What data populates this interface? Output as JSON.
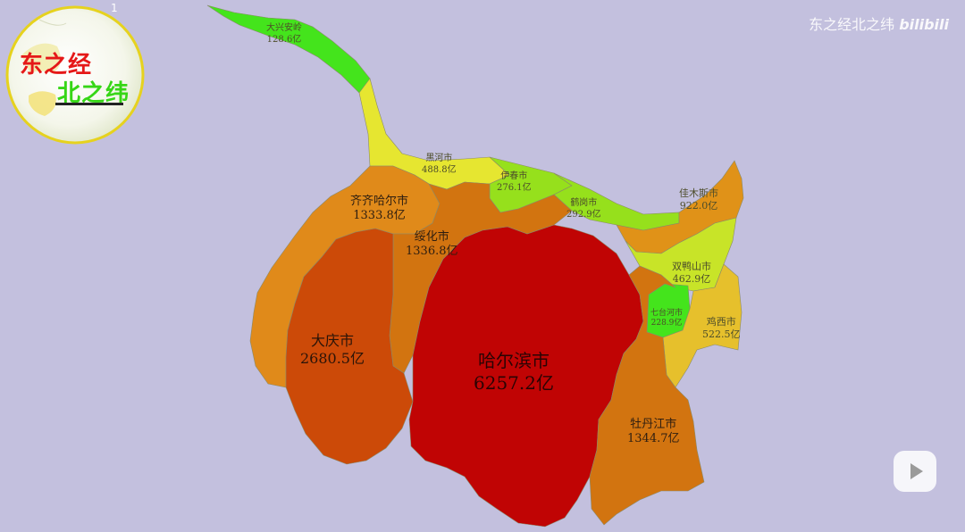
{
  "watermark": {
    "text": "东之经北之纬",
    "brand": "bilibili"
  },
  "logo": {
    "badge": "1",
    "line1": "东之经",
    "line2": "北之纬"
  },
  "legend_colors": {
    "highest": "#c00404",
    "high": "#cc4a08",
    "mid_high": "#d27410",
    "mid": "#e09218",
    "mid_low": "#e6c02c",
    "low": "#96e01c",
    "lowest": "#44e41c"
  },
  "regions": [
    {
      "id": "daxinganling",
      "name": "大兴安岭",
      "value": "128.6亿",
      "color": "#44e41c"
    },
    {
      "id": "heihe",
      "name": "黑河市",
      "value": "488.8亿",
      "color": "#e6e630"
    },
    {
      "id": "yichun",
      "name": "伊春市",
      "value": "276.1亿",
      "color": "#96e01c"
    },
    {
      "id": "hegang",
      "name": "鹤岗市",
      "value": "292.9亿",
      "color": "#96e01c"
    },
    {
      "id": "jiamusi",
      "name": "佳木斯市",
      "value": "922.0亿",
      "color": "#e09218"
    },
    {
      "id": "shuangyashan",
      "name": "双鸭山市",
      "value": "462.9亿",
      "color": "#c8e428"
    },
    {
      "id": "qitaihe",
      "name": "七台河市",
      "value": "228.9亿",
      "color": "#44e41c"
    },
    {
      "id": "jixi",
      "name": "鸡西市",
      "value": "522.5亿",
      "color": "#e6c02c"
    },
    {
      "id": "qiqihar",
      "name": "齐齐哈尔市",
      "value": "1333.8亿",
      "color": "#e08a1a"
    },
    {
      "id": "suihua",
      "name": "绥化市",
      "value": "1336.8亿",
      "color": "#d27410"
    },
    {
      "id": "daqing",
      "name": "大庆市",
      "value": "2680.5亿",
      "color": "#cc4a08"
    },
    {
      "id": "harbin",
      "name": "哈尔滨市",
      "value": "6257.2亿",
      "color": "#c00404"
    },
    {
      "id": "mudanjiang",
      "name": "牡丹江市",
      "value": "1344.7亿",
      "color": "#d27410"
    }
  ]
}
